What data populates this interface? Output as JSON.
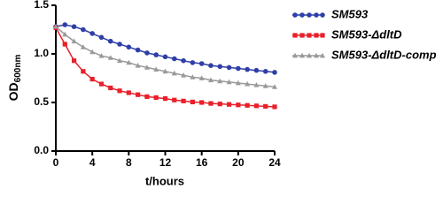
{
  "chart_data": {
    "type": "line",
    "xlabel": "t/hours",
    "ylabel": {
      "text": "OD",
      "subscript": "600nm"
    },
    "x": [
      0,
      1,
      2,
      3,
      4,
      5,
      6,
      7,
      8,
      9,
      10,
      11,
      12,
      13,
      14,
      15,
      16,
      17,
      18,
      19,
      20,
      21,
      22,
      23,
      24
    ],
    "xlim": [
      0,
      24
    ],
    "xticks": [
      0,
      4,
      8,
      12,
      16,
      20,
      24
    ],
    "ylim": [
      0,
      1.5
    ],
    "yticks": [
      {
        "value": 0,
        "label": "0.0"
      },
      0.5,
      {
        "value": 1,
        "label": "1.0"
      },
      {
        "value": 1.5,
        "label": "1.5"
      }
    ],
    "grid": false,
    "legend": "right",
    "series": [
      {
        "name": "SM593",
        "color": "#2f3fa8",
        "marker": "circle",
        "values": [
          1.28,
          1.3,
          1.28,
          1.25,
          1.21,
          1.17,
          1.13,
          1.1,
          1.07,
          1.04,
          1.01,
          0.99,
          0.97,
          0.95,
          0.93,
          0.91,
          0.9,
          0.88,
          0.87,
          0.86,
          0.85,
          0.84,
          0.83,
          0.82,
          0.81
        ]
      },
      {
        "name": "SM593-ΔdltD",
        "color": "#e8202a",
        "marker": "square",
        "values": [
          1.27,
          1.1,
          0.93,
          0.82,
          0.74,
          0.69,
          0.65,
          0.62,
          0.6,
          0.58,
          0.56,
          0.55,
          0.54,
          0.525,
          0.515,
          0.505,
          0.5,
          0.49,
          0.485,
          0.48,
          0.475,
          0.47,
          0.465,
          0.46,
          0.455
        ]
      },
      {
        "name": "SM593-ΔdltD-comp",
        "color": "#9a9a9a",
        "marker": "triangle",
        "values": [
          1.28,
          1.2,
          1.13,
          1.07,
          1.02,
          0.98,
          0.96,
          0.93,
          0.91,
          0.88,
          0.86,
          0.84,
          0.82,
          0.8,
          0.78,
          0.76,
          0.75,
          0.73,
          0.72,
          0.71,
          0.7,
          0.69,
          0.68,
          0.67,
          0.66
        ]
      }
    ]
  }
}
